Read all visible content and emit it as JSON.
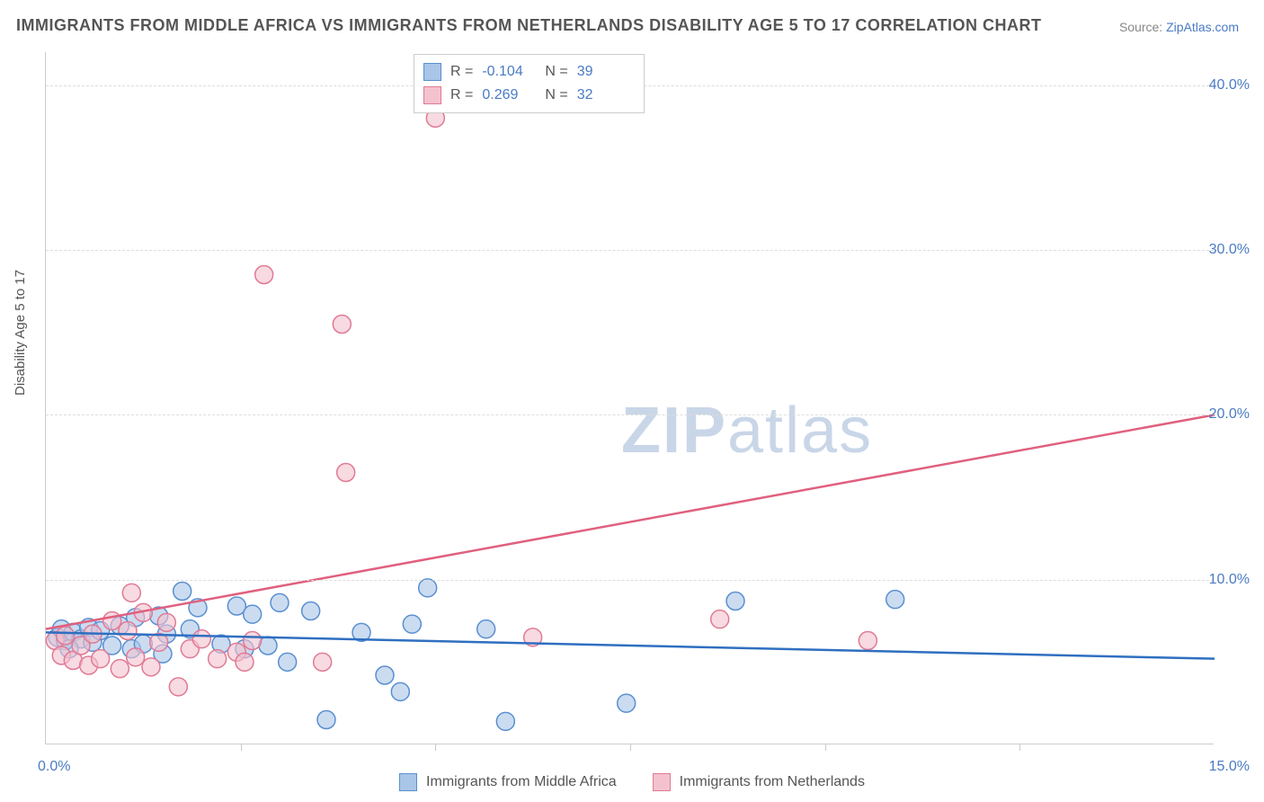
{
  "title": "IMMIGRANTS FROM MIDDLE AFRICA VS IMMIGRANTS FROM NETHERLANDS DISABILITY AGE 5 TO 17 CORRELATION CHART",
  "source_label": "Source: ",
  "source_link": "ZipAtlas.com",
  "y_axis_label": "Disability Age 5 to 17",
  "watermark_a": "ZIP",
  "watermark_b": "atlas",
  "chart": {
    "type": "scatter",
    "x_range": [
      0.0,
      15.0
    ],
    "y_range": [
      0.0,
      42.0
    ],
    "y_gridlines": [
      10.0,
      20.0,
      30.0,
      40.0
    ],
    "y_tick_labels": [
      "10.0%",
      "20.0%",
      "30.0%",
      "40.0%"
    ],
    "x_ticks": [
      2.5,
      5.0,
      7.5,
      10.0,
      12.5
    ],
    "x_tick_left": "0.0%",
    "x_tick_right": "15.0%",
    "background_color": "#ffffff",
    "grid_color": "#dddddd",
    "axis_color": "#cccccc",
    "series": [
      {
        "name": "Immigrants from Middle Africa",
        "legend_label": "Immigrants from Middle Africa",
        "fill_color": "#a9c5e8",
        "stroke_color": "#5a8fd0",
        "line_color": "#2f6fc0",
        "r_stat": "-0.104",
        "n_stat": "39",
        "marker_radius": 10,
        "trend": {
          "x1": 0.0,
          "y1": 6.8,
          "x2": 15.0,
          "y2": 5.2
        },
        "points": [
          [
            0.15,
            6.5
          ],
          [
            0.2,
            7.0
          ],
          [
            0.25,
            6.3
          ],
          [
            0.35,
            6.8
          ],
          [
            0.45,
            6.4
          ],
          [
            0.55,
            7.1
          ],
          [
            0.6,
            6.2
          ],
          [
            0.7,
            6.9
          ],
          [
            0.85,
            6.0
          ],
          [
            0.95,
            7.2
          ],
          [
            1.1,
            5.8
          ],
          [
            1.15,
            7.7
          ],
          [
            1.25,
            6.1
          ],
          [
            1.45,
            7.8
          ],
          [
            1.5,
            5.5
          ],
          [
            1.55,
            6.7
          ],
          [
            1.75,
            9.3
          ],
          [
            1.85,
            7.0
          ],
          [
            1.95,
            8.3
          ],
          [
            2.25,
            6.1
          ],
          [
            2.45,
            8.4
          ],
          [
            2.55,
            5.8
          ],
          [
            2.65,
            7.9
          ],
          [
            2.85,
            6.0
          ],
          [
            3.0,
            8.6
          ],
          [
            3.1,
            5.0
          ],
          [
            3.4,
            8.1
          ],
          [
            3.6,
            1.5
          ],
          [
            4.05,
            6.8
          ],
          [
            4.35,
            4.2
          ],
          [
            4.55,
            3.2
          ],
          [
            4.7,
            7.3
          ],
          [
            4.9,
            9.5
          ],
          [
            5.65,
            7.0
          ],
          [
            5.9,
            1.4
          ],
          [
            7.45,
            2.5
          ],
          [
            8.85,
            8.7
          ],
          [
            10.9,
            8.8
          ],
          [
            0.3,
            5.8
          ]
        ]
      },
      {
        "name": "Immigrants from Netherlands",
        "legend_label": "Immigrants from Netherlands",
        "fill_color": "#f4c2cf",
        "stroke_color": "#e07a94",
        "line_color": "#e0607f",
        "r_stat": "0.269",
        "n_stat": "32",
        "marker_radius": 10,
        "trend": {
          "x1": 0.0,
          "y1": 7.0,
          "x2": 15.0,
          "y2": 20.0
        },
        "points": [
          [
            0.12,
            6.3
          ],
          [
            0.2,
            5.4
          ],
          [
            0.25,
            6.6
          ],
          [
            0.35,
            5.1
          ],
          [
            0.45,
            6.0
          ],
          [
            0.55,
            4.8
          ],
          [
            0.6,
            6.7
          ],
          [
            0.7,
            5.2
          ],
          [
            0.85,
            7.5
          ],
          [
            0.95,
            4.6
          ],
          [
            1.05,
            6.9
          ],
          [
            1.15,
            5.3
          ],
          [
            1.1,
            9.2
          ],
          [
            1.25,
            8.0
          ],
          [
            1.35,
            4.7
          ],
          [
            1.45,
            6.2
          ],
          [
            1.55,
            7.4
          ],
          [
            1.7,
            3.5
          ],
          [
            1.85,
            5.8
          ],
          [
            2.0,
            6.4
          ],
          [
            2.2,
            5.2
          ],
          [
            2.45,
            5.6
          ],
          [
            2.65,
            6.3
          ],
          [
            2.55,
            5.0
          ],
          [
            2.8,
            28.5
          ],
          [
            3.55,
            5.0
          ],
          [
            3.8,
            25.5
          ],
          [
            3.85,
            16.5
          ],
          [
            5.0,
            38.0
          ],
          [
            6.25,
            6.5
          ],
          [
            8.65,
            7.6
          ],
          [
            10.55,
            6.3
          ]
        ]
      }
    ]
  },
  "stat_box": {
    "r_label": "R =",
    "n_label": "N ="
  }
}
